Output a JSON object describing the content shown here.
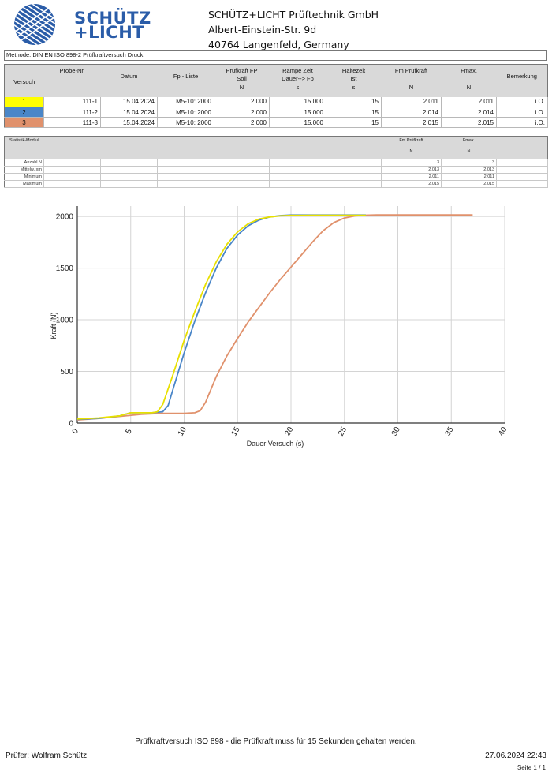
{
  "header": {
    "logo_line1": "SCHÜTZ",
    "logo_line2": "+LICHT",
    "company_name": "SCHÜTZ+LICHT Prüftechnik GmbH",
    "street": "Albert-Einstein-Str. 9d",
    "city": "40764 Langenfeld, Germany"
  },
  "method": "Methode: DIN EN ISO 898-2 Prüfkraftversuch Druck",
  "results_table": {
    "headers": {
      "versuch": "Versuch",
      "probe": "Probe-Nr.",
      "datum": "Datum",
      "fp_liste": "Fp - Liste",
      "pruefkraft_l1": "Prüfkraft FP",
      "pruefkraft_l2": "Soll",
      "pruefkraft_unit": "N",
      "rampe_l1": "Rampe Zeit",
      "rampe_l2": "Dauer--> Fp",
      "rampe_unit": "s",
      "halte_l1": "Haltezeit",
      "halte_l2": "Ist",
      "halte_unit": "s",
      "fm": "Fm Prüfkraft",
      "fm_unit": "N",
      "fmax": "Fmax.",
      "fmax_unit": "N",
      "bemerkung": "Bemerkung"
    },
    "rows": [
      {
        "nr": "1",
        "color": "#ffff00",
        "probe": "111-1",
        "datum": "15.04.2024",
        "fp": "M5-10: 2000",
        "soll": "2.000",
        "rampe": "15.000",
        "halte": "15",
        "fm": "2.011",
        "fmax": "2.011",
        "bem": "i.O."
      },
      {
        "nr": "2",
        "color": "#4a86c8",
        "probe": "111-2",
        "datum": "15.04.2024",
        "fp": "M5-10: 2000",
        "soll": "2.000",
        "rampe": "15.000",
        "halte": "15",
        "fm": "2.014",
        "fmax": "2.014",
        "bem": "i.O."
      },
      {
        "nr": "3",
        "color": "#e0916c",
        "probe": "111-3",
        "datum": "15.04.2024",
        "fp": "M5-10: 2000",
        "soll": "2.000",
        "rampe": "15.000",
        "halte": "15",
        "fm": "2.015",
        "fmax": "2.015",
        "bem": "i.O."
      }
    ]
  },
  "stats_table": {
    "header_label": "Statistik-Mod ul",
    "fm_label": "Fm Prüfkraft",
    "fm_unit": "N",
    "fmax_label": "Fmax.",
    "fmax_unit": "N",
    "rows": [
      {
        "label": "Anzahl N",
        "fm": "3",
        "fmax": "3"
      },
      {
        "label": "Mittelw. xm",
        "fm": "2.013",
        "fmax": "2.013"
      },
      {
        "label": "Minimum",
        "fm": "2.011",
        "fmax": "2.011"
      },
      {
        "label": "Maximum",
        "fm": "2.015",
        "fmax": "2.015"
      }
    ]
  },
  "chart_data": {
    "type": "line",
    "xlabel": "Dauer Versuch (s)",
    "ylabel": "Kraft (N)",
    "xlim": [
      0,
      40
    ],
    "ylim": [
      0,
      2100
    ],
    "xticks": [
      0,
      5,
      10,
      15,
      20,
      25,
      30,
      35,
      40
    ],
    "yticks": [
      0,
      500,
      1000,
      1500,
      2000
    ],
    "grid": true,
    "series": [
      {
        "color": "#e8e000",
        "x": [
          0,
          2,
          4,
          5,
          6,
          7,
          7.5,
          8,
          9,
          10,
          11,
          12,
          13,
          14,
          15,
          16,
          17,
          18,
          19,
          20,
          22,
          25,
          27
        ],
        "y": [
          40,
          50,
          70,
          100,
          100,
          100,
          110,
          180,
          480,
          800,
          1080,
          1340,
          1560,
          1730,
          1850,
          1930,
          1975,
          1995,
          2005,
          2010,
          2011,
          2011,
          2011
        ]
      },
      {
        "color": "#4a86c8",
        "x": [
          0,
          2,
          4,
          5,
          6,
          7,
          8,
          8.5,
          9,
          10,
          11,
          12,
          13,
          14,
          15,
          16,
          17,
          18,
          19,
          20,
          22,
          25,
          27
        ],
        "y": [
          35,
          45,
          70,
          100,
          100,
          100,
          110,
          170,
          340,
          680,
          990,
          1260,
          1500,
          1690,
          1820,
          1910,
          1965,
          1995,
          2008,
          2014,
          2014,
          2014,
          2014
        ]
      },
      {
        "color": "#e0916c",
        "x": [
          0,
          2,
          4,
          6,
          8,
          9,
          10,
          11,
          11.5,
          12,
          13,
          14,
          15,
          16,
          17,
          18,
          19,
          20,
          21,
          22,
          23,
          24,
          25,
          26,
          27,
          28,
          30,
          33,
          35,
          37
        ],
        "y": [
          30,
          45,
          65,
          85,
          95,
          95,
          95,
          100,
          120,
          200,
          450,
          650,
          820,
          980,
          1120,
          1260,
          1390,
          1510,
          1630,
          1750,
          1860,
          1940,
          1985,
          2005,
          2012,
          2015,
          2015,
          2015,
          2015,
          2015
        ]
      }
    ]
  },
  "footer": {
    "note": "Prüfkraftversuch ISO 898 - die Prüfkraft muss für 15 Sekunden gehalten werden.",
    "tester": "Prüfer: Wolfram Schütz",
    "datetime": "27.06.2024 22:43",
    "page": "Seite 1 / 1"
  }
}
